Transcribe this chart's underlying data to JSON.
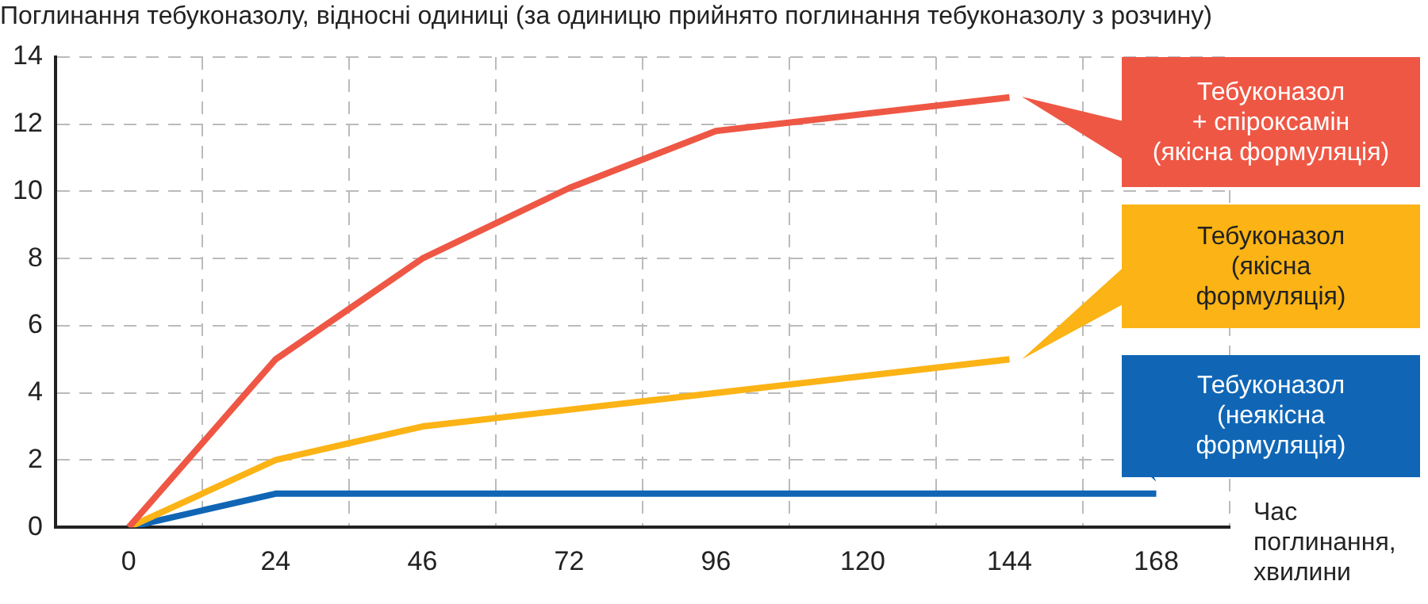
{
  "chart_data": {
    "type": "line",
    "ylabel": "Поглинання тебуконазолу, відносні одиниці (за одиницю прийнято поглинання тебуконазолу з розчину)",
    "xlabel": "Час поглинання, хвилини",
    "categories": [
      "0",
      "24",
      "46",
      "72",
      "96",
      "120",
      "144",
      "168"
    ],
    "series": [
      {
        "name": "Тебуконазол + спіроксамін (якісна формуляція)",
        "color": "#ef5745",
        "values": [
          0,
          5,
          8,
          10.1,
          11.8,
          12.3,
          12.8,
          null
        ]
      },
      {
        "name": "Тебуконазол (якісна формуляція)",
        "color": "#fbb315",
        "values": [
          0,
          2,
          3,
          3.5,
          4,
          4.5,
          5,
          null
        ]
      },
      {
        "name": "Тебуконазол (неякісна формуляція)",
        "color": "#1066b5",
        "values": [
          0,
          1,
          1,
          1,
          1,
          1,
          1,
          1
        ]
      }
    ],
    "ylim": [
      0,
      14
    ],
    "yticks": [
      0,
      2,
      4,
      6,
      8,
      10,
      12,
      14
    ],
    "grid": true,
    "legend": "right",
    "marker": "none",
    "line_style": "solid"
  }
}
